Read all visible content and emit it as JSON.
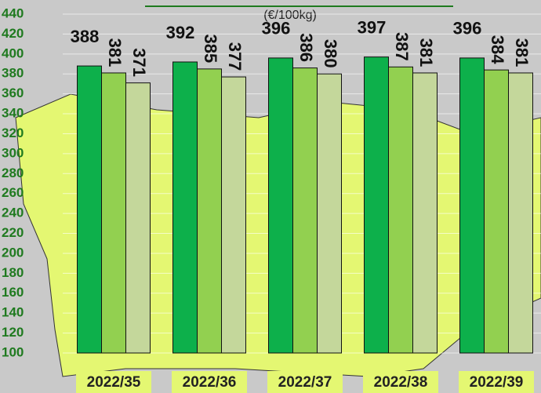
{
  "chart_data": {
    "type": "bar",
    "title": "(€/100kg)",
    "categories": [
      "2022/35",
      "2022/36",
      "2022/37",
      "2022/38",
      "2022/39"
    ],
    "series": [
      {
        "color": "#0db04b",
        "values": [
          388,
          392,
          396,
          397,
          396
        ]
      },
      {
        "color": "#92d050",
        "values": [
          381,
          385,
          386,
          387,
          384
        ]
      },
      {
        "color": "#c4d79b",
        "values": [
          371,
          377,
          380,
          381,
          381
        ]
      }
    ],
    "ylim": [
      100,
      440
    ],
    "yticks": [
      100,
      120,
      140,
      160,
      180,
      200,
      220,
      240,
      260,
      280,
      300,
      320,
      340,
      360,
      380,
      400,
      420,
      440
    ],
    "grid": true
  }
}
